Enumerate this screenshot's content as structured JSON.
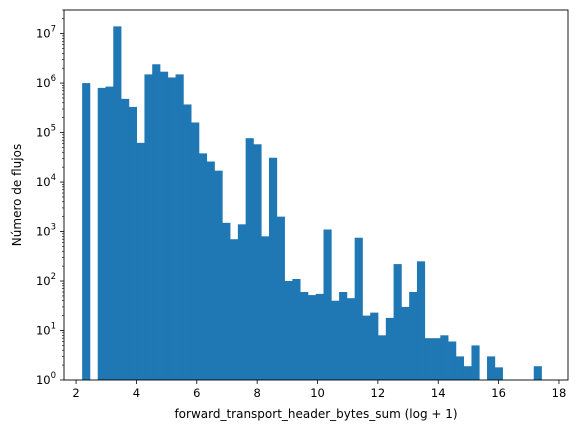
{
  "chart_data": {
    "type": "bar",
    "title": "",
    "xlabel": "forward_transport_header_bytes_sum (log + 1)",
    "ylabel": "Número de flujos",
    "xlim": [
      1.6,
      18.3
    ],
    "ylim": [
      1,
      30000000
    ],
    "y_scale": "log",
    "bar_color": "#1f77b4",
    "x_ticks": [
      2,
      4,
      6,
      8,
      10,
      12,
      14,
      16,
      18
    ],
    "x_tick_labels": [
      "2",
      "4",
      "6",
      "8",
      "10",
      "12",
      "14",
      "16",
      "18"
    ],
    "y_ticks": [
      1,
      10,
      100,
      1000,
      10000,
      100000,
      1000000,
      10000000
    ],
    "y_tick_labels": [
      {
        "base": "10",
        "exp": "0"
      },
      {
        "base": "10",
        "exp": "1"
      },
      {
        "base": "10",
        "exp": "2"
      },
      {
        "base": "10",
        "exp": "3"
      },
      {
        "base": "10",
        "exp": "4"
      },
      {
        "base": "10",
        "exp": "5"
      },
      {
        "base": "10",
        "exp": "6"
      },
      {
        "base": "10",
        "exp": "7"
      }
    ],
    "bin_edges": [
      2.201,
      2.459,
      2.717,
      2.975,
      3.233,
      3.491,
      3.749,
      4.007,
      4.265,
      4.523,
      4.781,
      5.039,
      5.297,
      5.555,
      5.813,
      6.071,
      6.329,
      6.587,
      6.845,
      7.103,
      7.361,
      7.619,
      7.877,
      8.135,
      8.393,
      8.651,
      8.909,
      9.167,
      9.425,
      9.683,
      9.941,
      10.199,
      10.457,
      10.715,
      10.973,
      11.231,
      11.489,
      11.747,
      12.005,
      12.263,
      12.521,
      12.779,
      13.037,
      13.295,
      13.553,
      13.811,
      14.069,
      14.327,
      14.585,
      14.843,
      15.101,
      15.359,
      15.617,
      15.875,
      16.133,
      16.391,
      16.649,
      16.907,
      17.165,
      17.423
    ],
    "values": [
      1000000,
      0,
      800000,
      850000,
      14000000,
      480000,
      330000,
      62000,
      1500000,
      2400000,
      1700000,
      1300000,
      1500000,
      370000,
      160000,
      38000,
      26000,
      17000,
      1500,
      700,
      1400,
      77000,
      58000,
      800,
      31000,
      2000,
      100,
      110,
      60,
      52,
      55,
      1100,
      40,
      60,
      45,
      750,
      20,
      23,
      8,
      18,
      220,
      30,
      60,
      250,
      7,
      7,
      8,
      6,
      3,
      1.9,
      5,
      0,
      3,
      1.8,
      0,
      0,
      0,
      0,
      1.9
    ]
  }
}
